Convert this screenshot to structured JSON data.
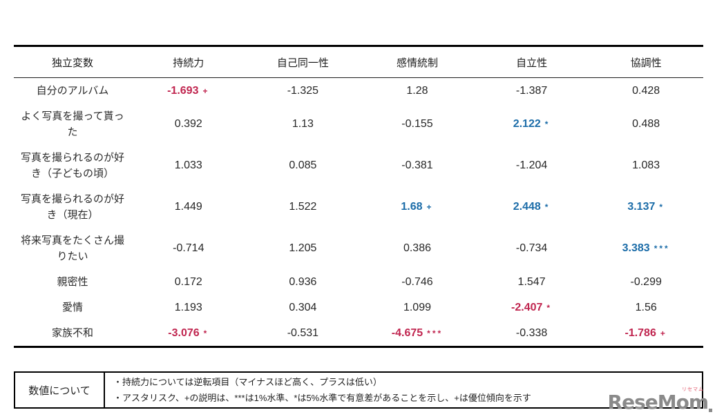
{
  "colors": {
    "negative_highlight": "#c0254f",
    "positive_highlight": "#1b6ca8",
    "text": "#222222",
    "logo_gray": "#8a8a8a",
    "logo_kana_red": "#e05568"
  },
  "chart_data": {
    "type": "table",
    "title": "",
    "columns": [
      "独立変数",
      "持続力",
      "自己同一性",
      "感情統制",
      "自立性",
      "協調性"
    ],
    "rows": [
      {
        "label": "自分のアルバム",
        "values": [
          {
            "text": "-1.693",
            "marker": "+",
            "highlight": "red"
          },
          {
            "text": "-1.325",
            "marker": "",
            "highlight": ""
          },
          {
            "text": "1.28",
            "marker": "",
            "highlight": ""
          },
          {
            "text": "-1.387",
            "marker": "",
            "highlight": ""
          },
          {
            "text": "0.428",
            "marker": "",
            "highlight": ""
          }
        ]
      },
      {
        "label": "よく写真を撮って貰った",
        "values": [
          {
            "text": "0.392",
            "marker": "",
            "highlight": ""
          },
          {
            "text": "1.13",
            "marker": "",
            "highlight": ""
          },
          {
            "text": "-0.155",
            "marker": "",
            "highlight": ""
          },
          {
            "text": "2.122",
            "marker": "*",
            "highlight": "blue"
          },
          {
            "text": "0.488",
            "marker": "",
            "highlight": ""
          }
        ]
      },
      {
        "label": "写真を撮られるのが好き（子どもの頃）",
        "values": [
          {
            "text": "1.033",
            "marker": "",
            "highlight": ""
          },
          {
            "text": "0.085",
            "marker": "",
            "highlight": ""
          },
          {
            "text": "-0.381",
            "marker": "",
            "highlight": ""
          },
          {
            "text": "-1.204",
            "marker": "",
            "highlight": ""
          },
          {
            "text": "1.083",
            "marker": "",
            "highlight": ""
          }
        ]
      },
      {
        "label": "写真を撮られるのが好き（現在）",
        "values": [
          {
            "text": "1.449",
            "marker": "",
            "highlight": ""
          },
          {
            "text": "1.522",
            "marker": "",
            "highlight": ""
          },
          {
            "text": "1.68",
            "marker": "+",
            "highlight": "blue"
          },
          {
            "text": "2.448",
            "marker": "*",
            "highlight": "blue"
          },
          {
            "text": "3.137",
            "marker": "*",
            "highlight": "blue"
          }
        ]
      },
      {
        "label": "将来写真をたくさん撮りたい",
        "values": [
          {
            "text": "-0.714",
            "marker": "",
            "highlight": ""
          },
          {
            "text": "1.205",
            "marker": "",
            "highlight": ""
          },
          {
            "text": "0.386",
            "marker": "",
            "highlight": ""
          },
          {
            "text": "-0.734",
            "marker": "",
            "highlight": ""
          },
          {
            "text": "3.383",
            "marker": "***",
            "highlight": "blue"
          }
        ]
      },
      {
        "label": "親密性",
        "values": [
          {
            "text": "0.172",
            "marker": "",
            "highlight": ""
          },
          {
            "text": "0.936",
            "marker": "",
            "highlight": ""
          },
          {
            "text": "-0.746",
            "marker": "",
            "highlight": ""
          },
          {
            "text": "1.547",
            "marker": "",
            "highlight": ""
          },
          {
            "text": "-0.299",
            "marker": "",
            "highlight": ""
          }
        ]
      },
      {
        "label": "愛情",
        "values": [
          {
            "text": "1.193",
            "marker": "",
            "highlight": ""
          },
          {
            "text": "0.304",
            "marker": "",
            "highlight": ""
          },
          {
            "text": "1.099",
            "marker": "",
            "highlight": ""
          },
          {
            "text": "-2.407",
            "marker": "*",
            "highlight": "red"
          },
          {
            "text": "1.56",
            "marker": "",
            "highlight": ""
          }
        ]
      },
      {
        "label": "家族不和",
        "values": [
          {
            "text": "-3.076",
            "marker": "*",
            "highlight": "red"
          },
          {
            "text": "-0.531",
            "marker": "",
            "highlight": ""
          },
          {
            "text": "-4.675",
            "marker": "***",
            "highlight": "red"
          },
          {
            "text": "-0.338",
            "marker": "",
            "highlight": ""
          },
          {
            "text": "-1.786",
            "marker": "+",
            "highlight": "red"
          }
        ]
      }
    ],
    "legend_note": "***は1%水準、*は5%水準で有意差、+は優位傾向"
  },
  "note": {
    "title": "数値について",
    "lines": [
      "・持続力については逆転項目（マイナスほど高く、プラスは低い）",
      "・アスタリスク、+の説明は、***は1%水準、*は5%水準で有意差があることを示し、+は優位傾向を示す"
    ]
  },
  "logo": {
    "text": "ReseMom",
    "kana": "リセマム"
  }
}
